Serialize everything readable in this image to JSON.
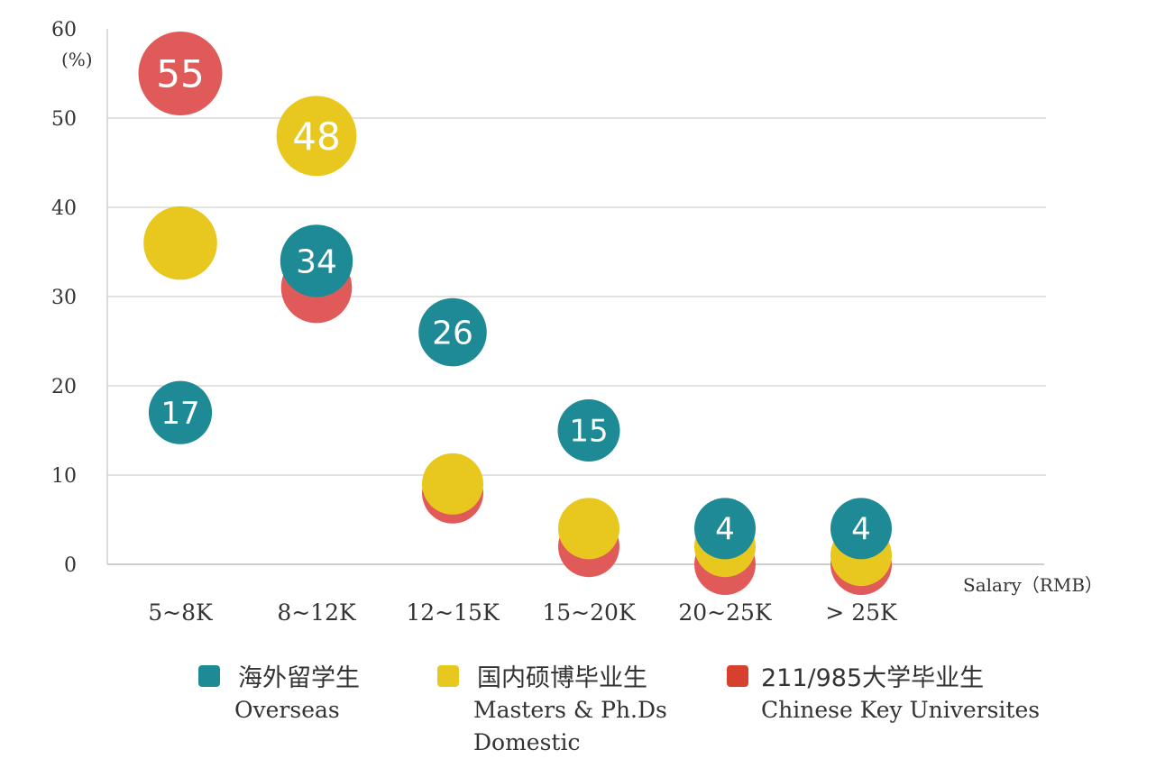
{
  "chart_data": {
    "type": "scatter",
    "categories": [
      "5~8K",
      "8~12K",
      "12~15K",
      "15~20K",
      "20~25K",
      "> 25K"
    ],
    "xlabel": "Salary（RMB）",
    "ylabel": "(%)",
    "ylim": [
      0,
      60
    ],
    "yticks": [
      "0",
      "10",
      "20",
      "30",
      "40",
      "50",
      "60"
    ],
    "grid": true,
    "series": [
      {
        "name": "211/985大学毕业生",
        "subtitle": "Chinese Key Universites",
        "color": "#e05a5a",
        "values": [
          55,
          31,
          8,
          2,
          0,
          0
        ],
        "labels": [
          "55",
          "",
          "",
          "",
          "",
          ""
        ]
      },
      {
        "name": "国内硕博毕业生",
        "subtitle": "Masters & Ph.Ds Domestic",
        "color": "#e8c81e",
        "values": [
          36,
          48,
          9,
          4,
          2,
          1
        ],
        "labels": [
          "",
          "48",
          "",
          "",
          "",
          ""
        ]
      },
      {
        "name": "海外留学生",
        "subtitle": "Overseas",
        "color": "#1e8a96",
        "values": [
          17,
          34,
          26,
          15,
          4,
          4
        ],
        "labels": [
          "17",
          "34",
          "26",
          "15",
          "4",
          "4"
        ]
      }
    ]
  },
  "legend": {
    "overseas": {
      "cn": "海外留学生",
      "en": "Overseas",
      "color": "#1e8a96"
    },
    "domestic": {
      "cn": "国内硕博毕业生",
      "en_line1": "Masters & Ph.Ds",
      "en_line2": "Domestic",
      "color": "#e8c81e"
    },
    "key": {
      "cn": "211/985大学毕业生",
      "en": "Chinese Key Universites",
      "color": "#d8402e"
    }
  }
}
